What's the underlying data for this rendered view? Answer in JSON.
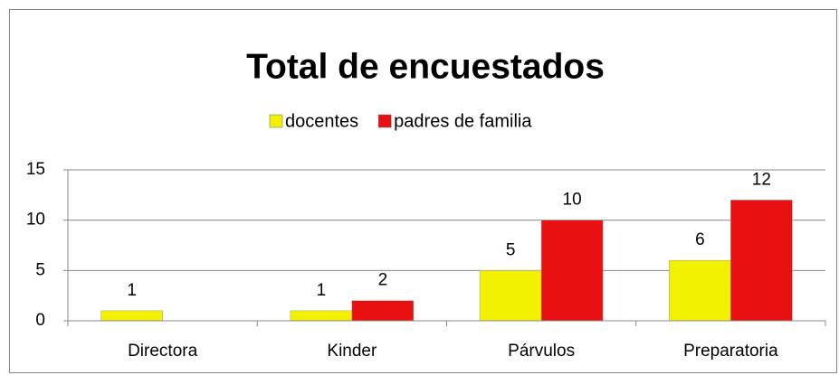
{
  "chart_data": {
    "type": "bar",
    "title": "Total de encuestados",
    "categories": [
      "Directora",
      "Kinder",
      "Párvulos",
      "Preparatoria"
    ],
    "series": [
      {
        "name": "docentes",
        "color": "#f2f200",
        "values": [
          1,
          1,
          5,
          6
        ]
      },
      {
        "name": "padres de familia",
        "color": "#e81010",
        "values": [
          null,
          2,
          10,
          12
        ]
      }
    ],
    "ylim": [
      0,
      15
    ],
    "yticks": [
      0,
      5,
      10,
      15
    ],
    "grid": true,
    "legend": "top"
  }
}
